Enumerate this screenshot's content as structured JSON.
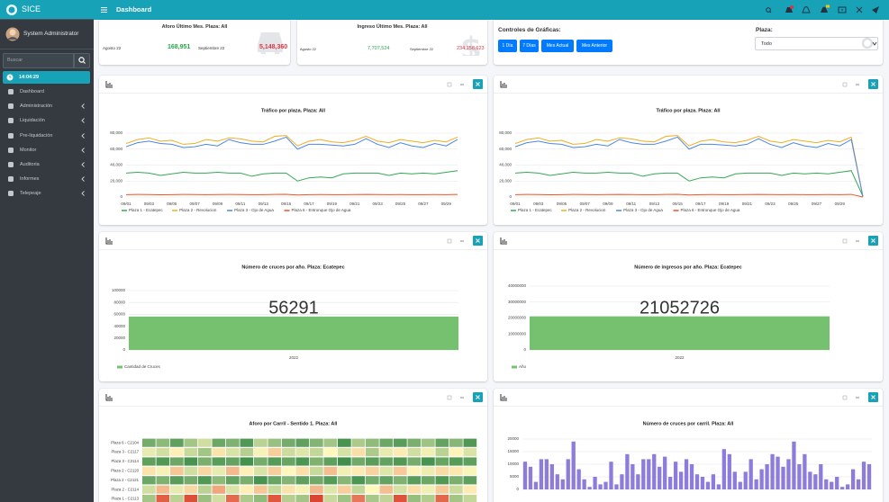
{
  "sidebar": {
    "brand": "SICE",
    "user": "System Administrator",
    "search": "Buscar",
    "time": "14:04:29",
    "menu": [
      "Dashboard",
      "Administración",
      "Liquidación",
      "Pre-liquidación",
      "Monitor",
      "Auditoria",
      "Informes",
      "Telepeaje"
    ]
  },
  "topbar": {
    "title": "Dashboard"
  },
  "info_cards": [
    {
      "title": "Aforo Último Mes. Plaza: All",
      "prev_label": "Agosto 22",
      "prev_value": "168,951",
      "cur_label": "Septiembre 22",
      "cur_value": "5,148,360"
    },
    {
      "title": "Ingreso Último Mes. Plaza: All",
      "prev_label": "Agosto 22",
      "prev_value": "7,707,524",
      "cur_label": "Septiembre 22",
      "cur_value": "234,158,623"
    }
  ],
  "controls": {
    "title": "Controles de Gráficas:",
    "buttons": [
      "1 Día",
      "7 Días",
      "Mes Actual",
      "Mes Anterior"
    ],
    "plaza_label": "Plaza:",
    "plaza_value": "Todo"
  },
  "chart_data": [
    {
      "type": "line",
      "title": "Tráfico por plaza. Plaza: All",
      "categories": [
        "09/01",
        null,
        "09/03",
        null,
        "09/05",
        null,
        "09/07",
        null,
        "09/09",
        null,
        "09/11",
        null,
        "09/13",
        null,
        "09/15",
        null,
        "09/17",
        null,
        "09/19",
        null,
        "09/21",
        null,
        "09/23",
        null,
        "09/25",
        null,
        "09/27",
        null,
        "09/29",
        null
      ],
      "ylim": [
        0,
        80000
      ],
      "yticks": [
        0,
        {
          "value": 20000,
          "label": "20,000"
        },
        {
          "value": 40000,
          "label": "40,000"
        },
        {
          "value": 60000,
          "label": "60,000"
        },
        {
          "value": 80000,
          "label": "80,000"
        }
      ],
      "grid": true,
      "series": [
        {
          "name": "Plaza 1 - Ecatepec",
          "color": "#34a853",
          "values": [
            30000,
            31000,
            30000,
            27000,
            29000,
            31000,
            30000,
            30000,
            31000,
            30000,
            30000,
            26000,
            29000,
            30000,
            30000,
            20000,
            24000,
            25000,
            24000,
            29000,
            30000,
            30000,
            30000,
            27000,
            30000,
            29000,
            30000,
            29000,
            31000,
            33000
          ]
        },
        {
          "name": "Plaza 2 - Revolucion",
          "color": "#f0ad1e",
          "values": [
            67000,
            72000,
            74000,
            70000,
            71000,
            66000,
            67000,
            72000,
            70000,
            74000,
            73000,
            70000,
            69000,
            76000,
            77000,
            64000,
            70000,
            72000,
            69000,
            68000,
            71000,
            76000,
            70000,
            68000,
            72000,
            70000,
            68000,
            71000,
            69000,
            75000
          ]
        },
        {
          "name": "Plaza 3 - Ojo de Agua",
          "color": "#4a86e8",
          "values": [
            63000,
            68000,
            70000,
            67000,
            66000,
            62000,
            63000,
            66000,
            64000,
            72000,
            68000,
            66000,
            66000,
            70000,
            75000,
            60000,
            66000,
            66000,
            65000,
            64000,
            66000,
            73000,
            66000,
            62000,
            68000,
            64000,
            62000,
            67000,
            64000,
            72000
          ]
        },
        {
          "name": "Plaza 6 - Entronque Ojo de Agua",
          "color": "#f4511e",
          "values": [
            3000,
            3200,
            3100,
            2800,
            3000,
            3200,
            3100,
            3000,
            3100,
            3300,
            3100,
            2900,
            3000,
            3200,
            3400,
            2600,
            3000,
            3100,
            3000,
            3000,
            3100,
            3300,
            3100,
            2900,
            3100,
            3000,
            3000,
            3100,
            3000,
            3300
          ]
        }
      ]
    },
    {
      "type": "line",
      "title": "Tráfico por plaza. Plaza: All",
      "categories": [
        "09/01",
        null,
        "09/03",
        null,
        "09/05",
        null,
        "09/07",
        null,
        "09/09",
        null,
        "09/11",
        null,
        "09/13",
        null,
        "09/15",
        null,
        "09/17",
        null,
        "09/19",
        null,
        "09/21",
        null,
        "09/23",
        null,
        "09/25",
        null,
        "09/27",
        null,
        "09/29",
        null,
        null
      ],
      "ylim": [
        0,
        80000
      ],
      "yticks": [
        0,
        {
          "value": 20000,
          "label": "20,000"
        },
        {
          "value": 40000,
          "label": "40,000"
        },
        {
          "value": 60000,
          "label": "60,000"
        },
        {
          "value": 80000,
          "label": "80,000"
        }
      ],
      "grid": true,
      "series": [
        {
          "name": "Plaza 1 - Ecatepec",
          "color": "#34a853",
          "values": [
            30000,
            31000,
            30000,
            27000,
            29000,
            31000,
            30000,
            30000,
            31000,
            30000,
            30000,
            26000,
            29000,
            30000,
            30000,
            20000,
            24000,
            25000,
            24000,
            29000,
            30000,
            30000,
            30000,
            27000,
            30000,
            29000,
            30000,
            29000,
            31000,
            33000,
            1000
          ]
        },
        {
          "name": "Plaza 2 - Revolucion",
          "color": "#f0ad1e",
          "values": [
            67000,
            72000,
            74000,
            70000,
            71000,
            66000,
            67000,
            72000,
            70000,
            74000,
            73000,
            70000,
            69000,
            76000,
            77000,
            64000,
            70000,
            72000,
            69000,
            68000,
            71000,
            76000,
            70000,
            68000,
            72000,
            70000,
            68000,
            71000,
            69000,
            75000,
            1000
          ]
        },
        {
          "name": "Plaza 3 - Ojo de Agua",
          "color": "#4a86e8",
          "values": [
            63000,
            68000,
            70000,
            67000,
            66000,
            62000,
            63000,
            66000,
            64000,
            72000,
            68000,
            66000,
            66000,
            70000,
            75000,
            60000,
            66000,
            66000,
            65000,
            64000,
            66000,
            73000,
            66000,
            62000,
            68000,
            64000,
            62000,
            67000,
            64000,
            72000,
            500
          ]
        },
        {
          "name": "Plaza 6 - Entronque Ojo de Agua",
          "color": "#f4511e",
          "values": [
            3000,
            3200,
            3100,
            2800,
            3000,
            3200,
            3100,
            3000,
            3100,
            3300,
            3100,
            2900,
            3000,
            3200,
            3400,
            2600,
            3000,
            3100,
            3000,
            3000,
            3100,
            3300,
            3100,
            2900,
            3100,
            3000,
            3000,
            3100,
            3000,
            3300,
            0
          ]
        }
      ]
    },
    {
      "type": "bar",
      "title": "Número de cruces por año. Plaza: Ecatepec",
      "categories": [
        "2022"
      ],
      "ylim": [
        0,
        100000
      ],
      "yticks": [
        0,
        20000,
        40000,
        60000,
        80000,
        100000
      ],
      "grid": true,
      "series": [
        {
          "name": "Cantidad de Cruces",
          "color": "#76c16f",
          "values": [
            56291
          ]
        }
      ]
    },
    {
      "type": "bar",
      "title": "Número de ingresos por año. Plaza: Ecatepec",
      "categories": [
        "2022"
      ],
      "ylim": [
        0,
        40000000
      ],
      "yticks": [
        0,
        10000000,
        20000000,
        30000000,
        40000000
      ],
      "grid": true,
      "series": [
        {
          "name": "Año",
          "color": "#76c16f",
          "values": [
            21052726
          ]
        }
      ]
    },
    {
      "type": "heatmap",
      "title": "Aforo por Carril - Sentido 1. Plaza: All",
      "rows": [
        "Plaza 6 - C2104",
        "Plaza 3 - C2117",
        "Plaza 3 - C2114",
        "Plaza 2 - C2120",
        "Plaza 2 - C2121",
        "Plaza 2 - C2114",
        "Plaza 1 - C2113"
      ],
      "zlim": [
        0,
        100
      ],
      "colors": [
        "#d7301f",
        "#fff7bc",
        "#1a7a35"
      ],
      "values": [
        [
          80,
          75,
          85,
          70,
          60,
          82,
          78,
          88,
          65,
          72,
          80,
          85,
          77,
          70,
          90,
          68,
          74,
          82,
          86,
          79,
          71,
          84,
          76,
          88
        ],
        [
          55,
          60,
          48,
          62,
          70,
          45,
          58,
          66,
          52,
          40,
          61,
          57,
          63,
          50,
          59,
          44,
          68,
          55,
          47,
          60,
          53,
          65,
          49,
          58
        ],
        [
          85,
          88,
          82,
          90,
          79,
          86,
          84,
          91,
          80,
          87,
          83,
          89,
          78,
          85,
          92,
          81,
          86,
          84,
          88,
          80,
          90,
          83,
          87,
          85
        ],
        [
          45,
          52,
          38,
          60,
          42,
          55,
          35,
          48,
          58,
          40,
          50,
          44,
          62,
          36,
          53,
          47,
          41,
          57,
          39,
          49,
          54,
          43,
          46,
          51
        ],
        [
          82,
          78,
          86,
          80,
          88,
          75,
          84,
          79,
          90,
          83,
          77,
          85,
          81,
          87,
          76,
          89,
          80,
          84,
          78,
          86,
          82,
          88,
          79,
          85
        ],
        [
          60,
          35,
          55,
          42,
          65,
          30,
          58,
          48,
          38,
          62,
          45,
          52,
          34,
          57,
          40,
          63,
          50,
          36,
          59,
          44,
          53,
          39,
          61,
          47
        ],
        [
          70,
          12,
          65,
          8,
          72,
          60,
          15,
          68,
          74,
          10,
          66,
          70,
          5,
          62,
          71,
          18,
          69,
          64,
          9,
          73,
          67,
          14,
          70,
          63
        ]
      ]
    },
    {
      "type": "bar",
      "title": "Número de cruces por carril. Plaza: All",
      "categories": [
        null,
        null,
        null,
        null,
        null,
        null,
        null,
        null,
        null,
        null,
        null,
        null,
        null,
        null,
        null,
        null,
        null,
        null,
        null,
        null,
        null,
        null,
        null,
        null,
        null,
        null,
        null,
        null,
        null,
        null,
        null,
        null,
        null,
        null,
        null,
        null,
        null,
        null,
        null,
        null,
        null,
        null,
        null,
        null,
        null,
        null,
        null,
        null,
        null,
        null,
        null,
        null,
        null,
        null,
        null,
        null,
        null,
        null,
        null,
        null,
        null,
        null,
        null,
        null,
        null
      ],
      "ylim": [
        0,
        20000
      ],
      "yticks": [
        0,
        5000,
        10000,
        15000,
        20000
      ],
      "grid": true,
      "series": [
        {
          "color": "#8e7cdd",
          "values": [
            11000,
            9000,
            3000,
            12000,
            12000,
            10000,
            6000,
            4000,
            12000,
            19000,
            8000,
            4000,
            1000,
            5000,
            2000,
            3000,
            11000,
            2000,
            6000,
            14000,
            10000,
            6000,
            12000,
            12000,
            14000,
            9000,
            13000,
            5000,
            11000,
            7000,
            12000,
            10000,
            6000,
            5000,
            3000,
            6000,
            2000,
            16000,
            14000,
            7000,
            3000,
            7000,
            12000,
            4000,
            8000,
            10000,
            14000,
            13000,
            9000,
            12000,
            19000,
            10000,
            14000,
            7000,
            6000,
            10000,
            4000,
            3000,
            5000,
            1000,
            2000,
            8000,
            4000,
            11000,
            10000
          ]
        }
      ]
    }
  ]
}
